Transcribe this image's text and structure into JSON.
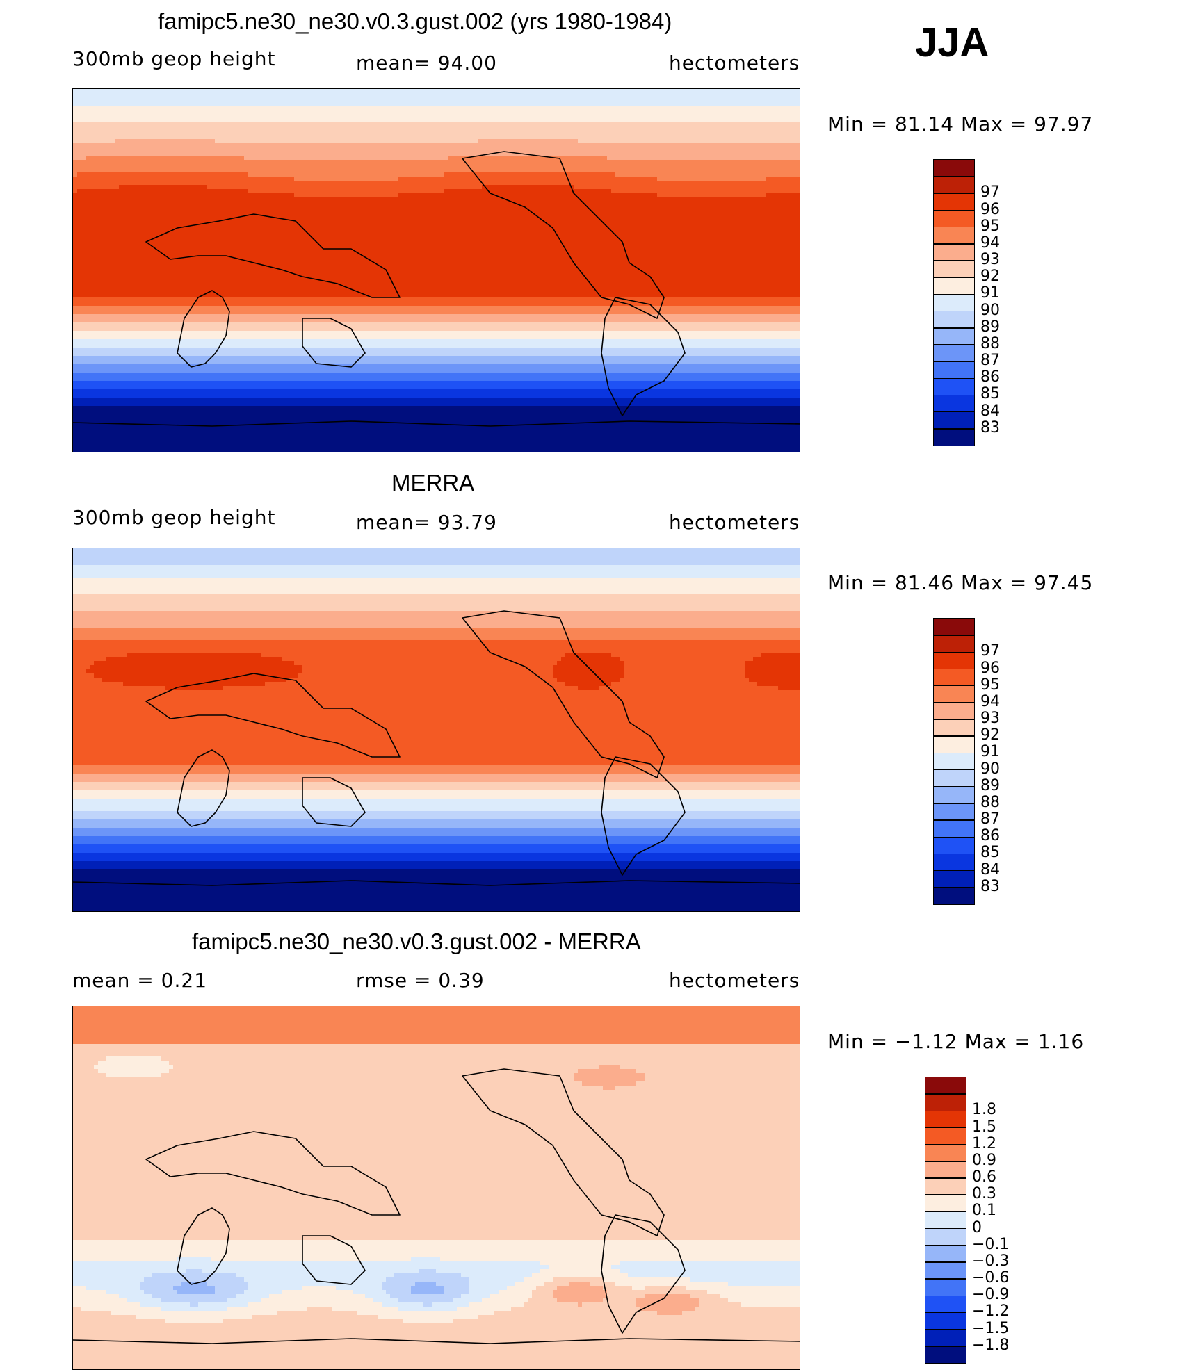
{
  "season": "JJA",
  "panels": [
    {
      "title": "famipc5.ne30_ne30.v0.3.gust.002 (yrs 1980-1984)",
      "left_label": "300mb  geop  height",
      "center_label": "mean=   94.00",
      "right_label": "hectometers",
      "min_max": "Min  =    81.14  Max  =    97.97",
      "field": "model",
      "colorbar": {
        "colors": [
          "#000e7e",
          "#0020b8",
          "#0a36e0",
          "#1f52f5",
          "#4274f7",
          "#6c95f8",
          "#96b6f9",
          "#bfd4fa",
          "#dcebfb",
          "#fdeee0",
          "#fcd0b8",
          "#fbad8d",
          "#f98554",
          "#f45a24",
          "#e43505",
          "#bd2106",
          "#8a0a0a"
        ],
        "labels": [
          "83",
          "84",
          "85",
          "86",
          "87",
          "88",
          "89",
          "90",
          "91",
          "92",
          "93",
          "94",
          "95",
          "96",
          "97"
        ]
      }
    },
    {
      "title": "MERRA",
      "left_label": "300mb  geop  height",
      "center_label": "mean=   93.79",
      "right_label": "hectometers",
      "min_max": "Min  =    81.46  Max  =    97.45",
      "field": "obs",
      "colorbar": {
        "colors": [
          "#000e7e",
          "#0020b8",
          "#0a36e0",
          "#1f52f5",
          "#4274f7",
          "#6c95f8",
          "#96b6f9",
          "#bfd4fa",
          "#dcebfb",
          "#fdeee0",
          "#fcd0b8",
          "#fbad8d",
          "#f98554",
          "#f45a24",
          "#e43505",
          "#bd2106",
          "#8a0a0a"
        ],
        "labels": [
          "83",
          "84",
          "85",
          "86",
          "87",
          "88",
          "89",
          "90",
          "91",
          "92",
          "93",
          "94",
          "95",
          "96",
          "97"
        ]
      }
    },
    {
      "title": "famipc5.ne30_ne30.v0.3.gust.002 - MERRA",
      "left_label": "mean  =      0.21",
      "center_label": "rmse  =     0.39",
      "right_label": "hectometers",
      "min_max": "Min  =    −1.12  Max  =      1.16",
      "field": "diff",
      "colorbar": {
        "colors": [
          "#000e7e",
          "#0020b8",
          "#0a36e0",
          "#1f52f5",
          "#4274f7",
          "#6c95f8",
          "#96b6f9",
          "#bfd4fa",
          "#dcebfb",
          "#fdeee0",
          "#fcd0b8",
          "#fbad8d",
          "#f98554",
          "#f45a24",
          "#e43505",
          "#bd2106",
          "#8a0a0a"
        ],
        "labels": [
          "−1.8",
          "−1.5",
          "−1.2",
          "−0.9",
          "−0.6",
          "−0.3",
          "−0.1",
          "0",
          "0.1",
          "0.3",
          "0.6",
          "0.9",
          "1.2",
          "1.5",
          "1.8"
        ]
      }
    }
  ]
}
